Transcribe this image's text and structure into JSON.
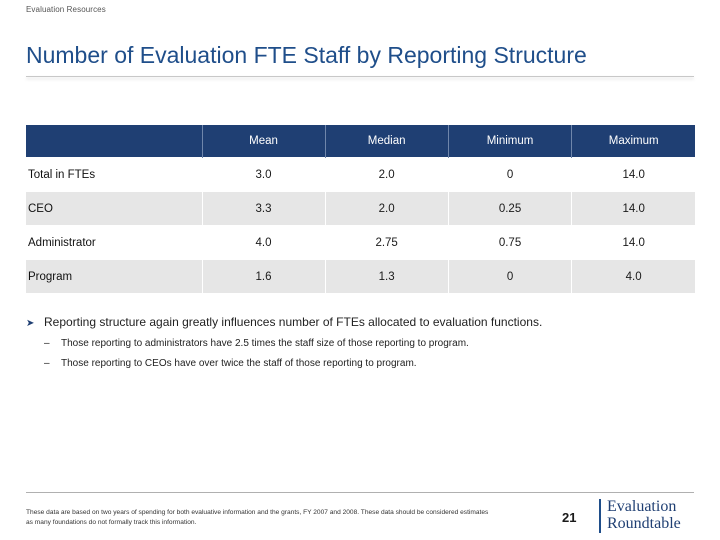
{
  "header": {
    "section_label": "Evaluation Resources",
    "title": "Number of Evaluation FTE Staff by Reporting Structure"
  },
  "table": {
    "columns": [
      "",
      "Mean",
      "Median",
      "Minimum",
      "Maximum"
    ],
    "rows": [
      {
        "label": "Total in FTEs",
        "mean": "3.0",
        "median": "2.0",
        "minimum": "0",
        "maximum": "14.0"
      },
      {
        "label": "CEO",
        "mean": "3.3",
        "median": "2.0",
        "minimum": "0.25",
        "maximum": "14.0"
      },
      {
        "label": "Administrator",
        "mean": "4.0",
        "median": "2.75",
        "minimum": "0.75",
        "maximum": "14.0"
      },
      {
        "label": "Program",
        "mean": "1.6",
        "median": "1.3",
        "minimum": "0",
        "maximum": "4.0"
      }
    ]
  },
  "bullets": {
    "main": "Reporting structure again greatly influences number of FTEs allocated to evaluation functions.",
    "subs": [
      "Those reporting to administrators have 2.5 times the staff size of those reporting to program.",
      "Those reporting to CEOs have  over twice the staff of those reporting to program."
    ]
  },
  "footer": {
    "footnote": "These data are based on two years of spending for both evaluative information and the grants, FY 2007 and 2008. These data should be considered estimates as many foundations do not formally track this information.",
    "page_number": "21",
    "logo_line1": "Evaluation",
    "logo_line2": "Roundtable"
  }
}
